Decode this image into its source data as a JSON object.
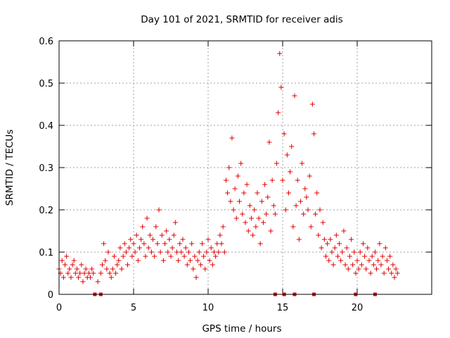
{
  "chart_data": {
    "type": "scatter",
    "title": "Day 101 of 2021, SRMTID for receiver adis",
    "xlabel": "GPS time / hours",
    "ylabel": "SRMTID / TECUs",
    "xlim": [
      0,
      25
    ],
    "ylim": [
      0,
      0.6
    ],
    "x_ticks": [
      0,
      5,
      10,
      15,
      20
    ],
    "x_tick_labels": [
      "0",
      "5",
      "10",
      "15",
      "20"
    ],
    "y_ticks": [
      0,
      0.1,
      0.2,
      0.3,
      0.4,
      0.5,
      0.6
    ],
    "y_tick_labels": [
      "0",
      "0.1",
      "0.2",
      "0.3",
      "0.4",
      "0.5",
      "0.6"
    ],
    "grid": true,
    "marker": "+",
    "color": "#e00000",
    "baseline_markers_x": [
      2.4,
      2.8,
      14.5,
      15.1,
      15.8,
      17.1,
      19.9,
      21.2
    ],
    "series": [
      {
        "name": "SRMTID",
        "points": [
          [
            0.0,
            0.06
          ],
          [
            0.1,
            0.05
          ],
          [
            0.2,
            0.08
          ],
          [
            0.3,
            0.04
          ],
          [
            0.4,
            0.07
          ],
          [
            0.5,
            0.09
          ],
          [
            0.6,
            0.05
          ],
          [
            0.7,
            0.06
          ],
          [
            0.8,
            0.04
          ],
          [
            0.9,
            0.07
          ],
          [
            1.0,
            0.08
          ],
          [
            1.1,
            0.05
          ],
          [
            1.2,
            0.06
          ],
          [
            1.3,
            0.04
          ],
          [
            1.4,
            0.05
          ],
          [
            1.5,
            0.07
          ],
          [
            1.6,
            0.03
          ],
          [
            1.7,
            0.05
          ],
          [
            1.8,
            0.06
          ],
          [
            1.9,
            0.04
          ],
          [
            2.0,
            0.05
          ],
          [
            2.1,
            0.04
          ],
          [
            2.2,
            0.06
          ],
          [
            2.3,
            0.05
          ],
          [
            2.6,
            0.03
          ],
          [
            2.8,
            0.05
          ],
          [
            2.9,
            0.07
          ],
          [
            3.0,
            0.12
          ],
          [
            3.1,
            0.08
          ],
          [
            3.2,
            0.06
          ],
          [
            3.3,
            0.1
          ],
          [
            3.4,
            0.05
          ],
          [
            3.5,
            0.04
          ],
          [
            3.6,
            0.06
          ],
          [
            3.7,
            0.09
          ],
          [
            3.8,
            0.05
          ],
          [
            3.9,
            0.07
          ],
          [
            4.0,
            0.08
          ],
          [
            4.1,
            0.11
          ],
          [
            4.2,
            0.06
          ],
          [
            4.3,
            0.09
          ],
          [
            4.4,
            0.12
          ],
          [
            4.5,
            0.1
          ],
          [
            4.6,
            0.07
          ],
          [
            4.7,
            0.11
          ],
          [
            4.8,
            0.13
          ],
          [
            4.9,
            0.09
          ],
          [
            5.0,
            0.12
          ],
          [
            5.1,
            0.1
          ],
          [
            5.2,
            0.14
          ],
          [
            5.3,
            0.08
          ],
          [
            5.4,
            0.11
          ],
          [
            5.5,
            0.13
          ],
          [
            5.6,
            0.16
          ],
          [
            5.7,
            0.12
          ],
          [
            5.8,
            0.09
          ],
          [
            5.9,
            0.18
          ],
          [
            6.0,
            0.11
          ],
          [
            6.1,
            0.14
          ],
          [
            6.2,
            0.1
          ],
          [
            6.3,
            0.13
          ],
          [
            6.4,
            0.09
          ],
          [
            6.5,
            0.16
          ],
          [
            6.6,
            0.12
          ],
          [
            6.7,
            0.2
          ],
          [
            6.8,
            0.1
          ],
          [
            6.9,
            0.14
          ],
          [
            7.0,
            0.08
          ],
          [
            7.1,
            0.12
          ],
          [
            7.2,
            0.15
          ],
          [
            7.3,
            0.1
          ],
          [
            7.4,
            0.13
          ],
          [
            7.5,
            0.09
          ],
          [
            7.6,
            0.11
          ],
          [
            7.7,
            0.14
          ],
          [
            7.8,
            0.17
          ],
          [
            7.9,
            0.1
          ],
          [
            8.0,
            0.08
          ],
          [
            8.1,
            0.12
          ],
          [
            8.2,
            0.1
          ],
          [
            8.3,
            0.13
          ],
          [
            8.4,
            0.09
          ],
          [
            8.5,
            0.11
          ],
          [
            8.6,
            0.07
          ],
          [
            8.7,
            0.1
          ],
          [
            8.8,
            0.08
          ],
          [
            8.9,
            0.12
          ],
          [
            9.0,
            0.06
          ],
          [
            9.1,
            0.09
          ],
          [
            9.2,
            0.04
          ],
          [
            9.3,
            0.08
          ],
          [
            9.4,
            0.1
          ],
          [
            9.5,
            0.07
          ],
          [
            9.6,
            0.12
          ],
          [
            9.7,
            0.09
          ],
          [
            9.8,
            0.06
          ],
          [
            9.9,
            0.1
          ],
          [
            10.0,
            0.13
          ],
          [
            10.1,
            0.08
          ],
          [
            10.2,
            0.11
          ],
          [
            10.3,
            0.07
          ],
          [
            10.4,
            0.1
          ],
          [
            10.5,
            0.09
          ],
          [
            10.6,
            0.12
          ],
          [
            10.7,
            0.1
          ],
          [
            10.8,
            0.14
          ],
          [
            10.9,
            0.12
          ],
          [
            11.0,
            0.16
          ],
          [
            11.1,
            0.1
          ],
          [
            11.2,
            0.27
          ],
          [
            11.3,
            0.24
          ],
          [
            11.4,
            0.3
          ],
          [
            11.5,
            0.22
          ],
          [
            11.6,
            0.37
          ],
          [
            11.7,
            0.2
          ],
          [
            11.8,
            0.25
          ],
          [
            11.9,
            0.18
          ],
          [
            12.0,
            0.28
          ],
          [
            12.1,
            0.22
          ],
          [
            12.2,
            0.31
          ],
          [
            12.3,
            0.19
          ],
          [
            12.4,
            0.24
          ],
          [
            12.5,
            0.17
          ],
          [
            12.6,
            0.26
          ],
          [
            12.7,
            0.15
          ],
          [
            12.8,
            0.21
          ],
          [
            12.9,
            0.18
          ],
          [
            13.0,
            0.14
          ],
          [
            13.1,
            0.2
          ],
          [
            13.2,
            0.16
          ],
          [
            13.3,
            0.24
          ],
          [
            13.4,
            0.18
          ],
          [
            13.5,
            0.12
          ],
          [
            13.6,
            0.22
          ],
          [
            13.7,
            0.17
          ],
          [
            13.8,
            0.26
          ],
          [
            13.9,
            0.19
          ],
          [
            14.0,
            0.23
          ],
          [
            14.1,
            0.36
          ],
          [
            14.2,
            0.15
          ],
          [
            14.3,
            0.27
          ],
          [
            14.4,
            0.21
          ],
          [
            14.5,
            0.19
          ],
          [
            14.6,
            0.31
          ],
          [
            14.7,
            0.43
          ],
          [
            14.8,
            0.57
          ],
          [
            14.9,
            0.49
          ],
          [
            15.0,
            0.27
          ],
          [
            15.1,
            0.38
          ],
          [
            15.2,
            0.2
          ],
          [
            15.3,
            0.33
          ],
          [
            15.4,
            0.24
          ],
          [
            15.5,
            0.29
          ],
          [
            15.6,
            0.35
          ],
          [
            15.7,
            0.16
          ],
          [
            15.8,
            0.47
          ],
          [
            15.9,
            0.21
          ],
          [
            16.0,
            0.27
          ],
          [
            16.1,
            0.13
          ],
          [
            16.2,
            0.22
          ],
          [
            16.3,
            0.31
          ],
          [
            16.4,
            0.19
          ],
          [
            16.5,
            0.25
          ],
          [
            16.6,
            0.23
          ],
          [
            16.7,
            0.2
          ],
          [
            16.8,
            0.28
          ],
          [
            16.9,
            0.16
          ],
          [
            17.0,
            0.45
          ],
          [
            17.1,
            0.38
          ],
          [
            17.2,
            0.19
          ],
          [
            17.3,
            0.24
          ],
          [
            17.4,
            0.14
          ],
          [
            17.5,
            0.2
          ],
          [
            17.6,
            0.11
          ],
          [
            17.7,
            0.17
          ],
          [
            17.8,
            0.13
          ],
          [
            17.9,
            0.09
          ],
          [
            18.0,
            0.12
          ],
          [
            18.1,
            0.08
          ],
          [
            18.2,
            0.13
          ],
          [
            18.3,
            0.1
          ],
          [
            18.4,
            0.07
          ],
          [
            18.5,
            0.11
          ],
          [
            18.6,
            0.14
          ],
          [
            18.7,
            0.09
          ],
          [
            18.8,
            0.12
          ],
          [
            18.9,
            0.08
          ],
          [
            19.0,
            0.1
          ],
          [
            19.1,
            0.15
          ],
          [
            19.2,
            0.07
          ],
          [
            19.3,
            0.11
          ],
          [
            19.4,
            0.06
          ],
          [
            19.5,
            0.09
          ],
          [
            19.6,
            0.13
          ],
          [
            19.7,
            0.07
          ],
          [
            19.8,
            0.1
          ],
          [
            19.9,
            0.05
          ],
          [
            20.0,
            0.08
          ],
          [
            20.1,
            0.06
          ],
          [
            20.2,
            0.1
          ],
          [
            20.3,
            0.07
          ],
          [
            20.4,
            0.12
          ],
          [
            20.5,
            0.09
          ],
          [
            20.6,
            0.06
          ],
          [
            20.7,
            0.11
          ],
          [
            20.8,
            0.08
          ],
          [
            20.9,
            0.05
          ],
          [
            21.0,
            0.09
          ],
          [
            21.1,
            0.07
          ],
          [
            21.2,
            0.1
          ],
          [
            21.3,
            0.06
          ],
          [
            21.4,
            0.08
          ],
          [
            21.5,
            0.12
          ],
          [
            21.6,
            0.07
          ],
          [
            21.7,
            0.09
          ],
          [
            21.8,
            0.05
          ],
          [
            21.9,
            0.11
          ],
          [
            22.0,
            0.08
          ],
          [
            22.1,
            0.06
          ],
          [
            22.2,
            0.09
          ],
          [
            22.3,
            0.05
          ],
          [
            22.4,
            0.07
          ],
          [
            22.5,
            0.04
          ],
          [
            22.6,
            0.06
          ],
          [
            22.7,
            0.05
          ]
        ]
      }
    ]
  }
}
